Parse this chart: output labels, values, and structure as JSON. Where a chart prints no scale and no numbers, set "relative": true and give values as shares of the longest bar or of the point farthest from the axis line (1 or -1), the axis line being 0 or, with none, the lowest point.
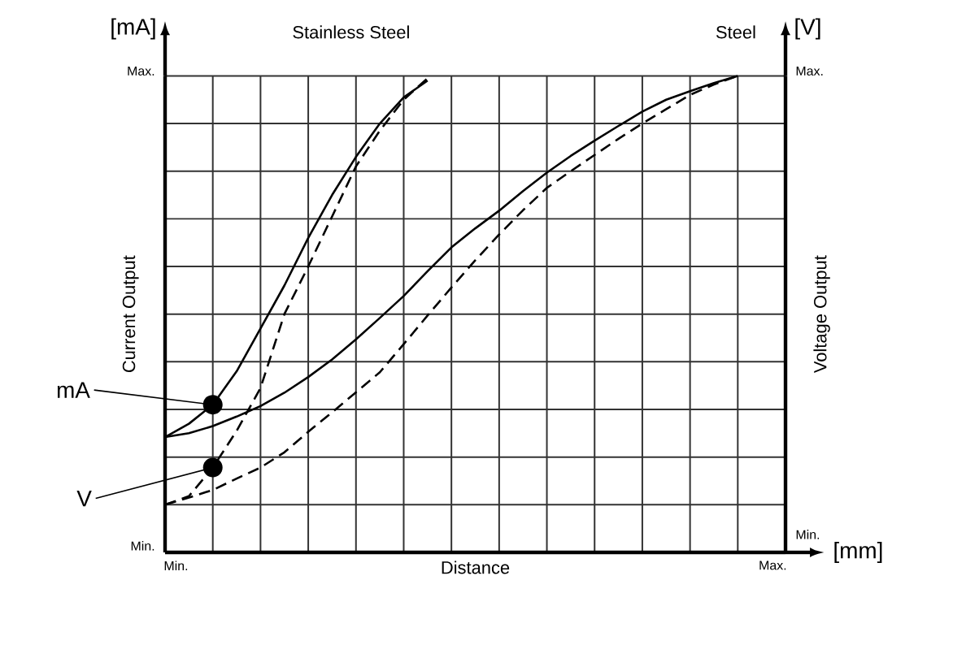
{
  "chart_data": {
    "type": "line",
    "relative": true,
    "xlabel": "Distance",
    "ylabel": "Current Output",
    "y2label": "Voltage Output",
    "categories": [
      null,
      null,
      null,
      null,
      null,
      null,
      null,
      null,
      null,
      null,
      null,
      null,
      null,
      null,
      null,
      null,
      null,
      null,
      null,
      null,
      null,
      null,
      null,
      null,
      null,
      null,
      null
    ],
    "annotations": [
      "Stainless Steel",
      "Steel",
      "mA",
      "V",
      "[mA]",
      "[V]",
      "[mm]",
      "Min.",
      "Max.",
      "Min.",
      "Max.",
      "Min.",
      "Max."
    ],
    "grid": true,
    "marker": "none",
    "series": [
      {
        "color": "#000000",
        "line_style": "solid",
        "values": [
          0.242,
          0.27,
          0.31,
          0.38,
          0.47,
          0.56,
          0.66,
          0.75,
          0.83,
          0.9,
          0.955,
          0.99,
          null,
          null,
          null,
          null,
          null,
          null,
          null,
          null,
          null,
          null,
          null,
          null,
          null,
          null,
          null
        ]
      },
      {
        "color": "#000000",
        "line_style": "solid",
        "values": [
          0.242,
          0.25,
          0.265,
          0.285,
          0.307,
          0.335,
          0.368,
          0.405,
          0.447,
          0.492,
          0.538,
          0.59,
          0.64,
          0.68,
          0.717,
          0.758,
          0.797,
          0.832,
          0.864,
          0.895,
          0.925,
          0.95,
          0.968,
          0.985,
          1.0,
          null,
          null
        ]
      },
      {
        "color": "#000000",
        "line_style": "dashed",
        "values": [
          0.1,
          0.118,
          0.178,
          0.255,
          0.345,
          0.5,
          0.6,
          0.705,
          0.81,
          0.885,
          0.95,
          0.995,
          null,
          null,
          null,
          null,
          null,
          null,
          null,
          null,
          null,
          null,
          null,
          null,
          null,
          null,
          null
        ]
      },
      {
        "color": "#000000",
        "line_style": "dashed",
        "values": [
          0.1,
          0.115,
          0.131,
          0.155,
          0.178,
          0.21,
          0.253,
          0.294,
          0.336,
          0.378,
          0.437,
          0.497,
          0.556,
          0.613,
          0.667,
          0.718,
          0.765,
          0.8,
          0.834,
          0.868,
          0.9,
          0.93,
          0.96,
          0.982,
          1.0,
          null,
          null
        ]
      }
    ]
  }
}
